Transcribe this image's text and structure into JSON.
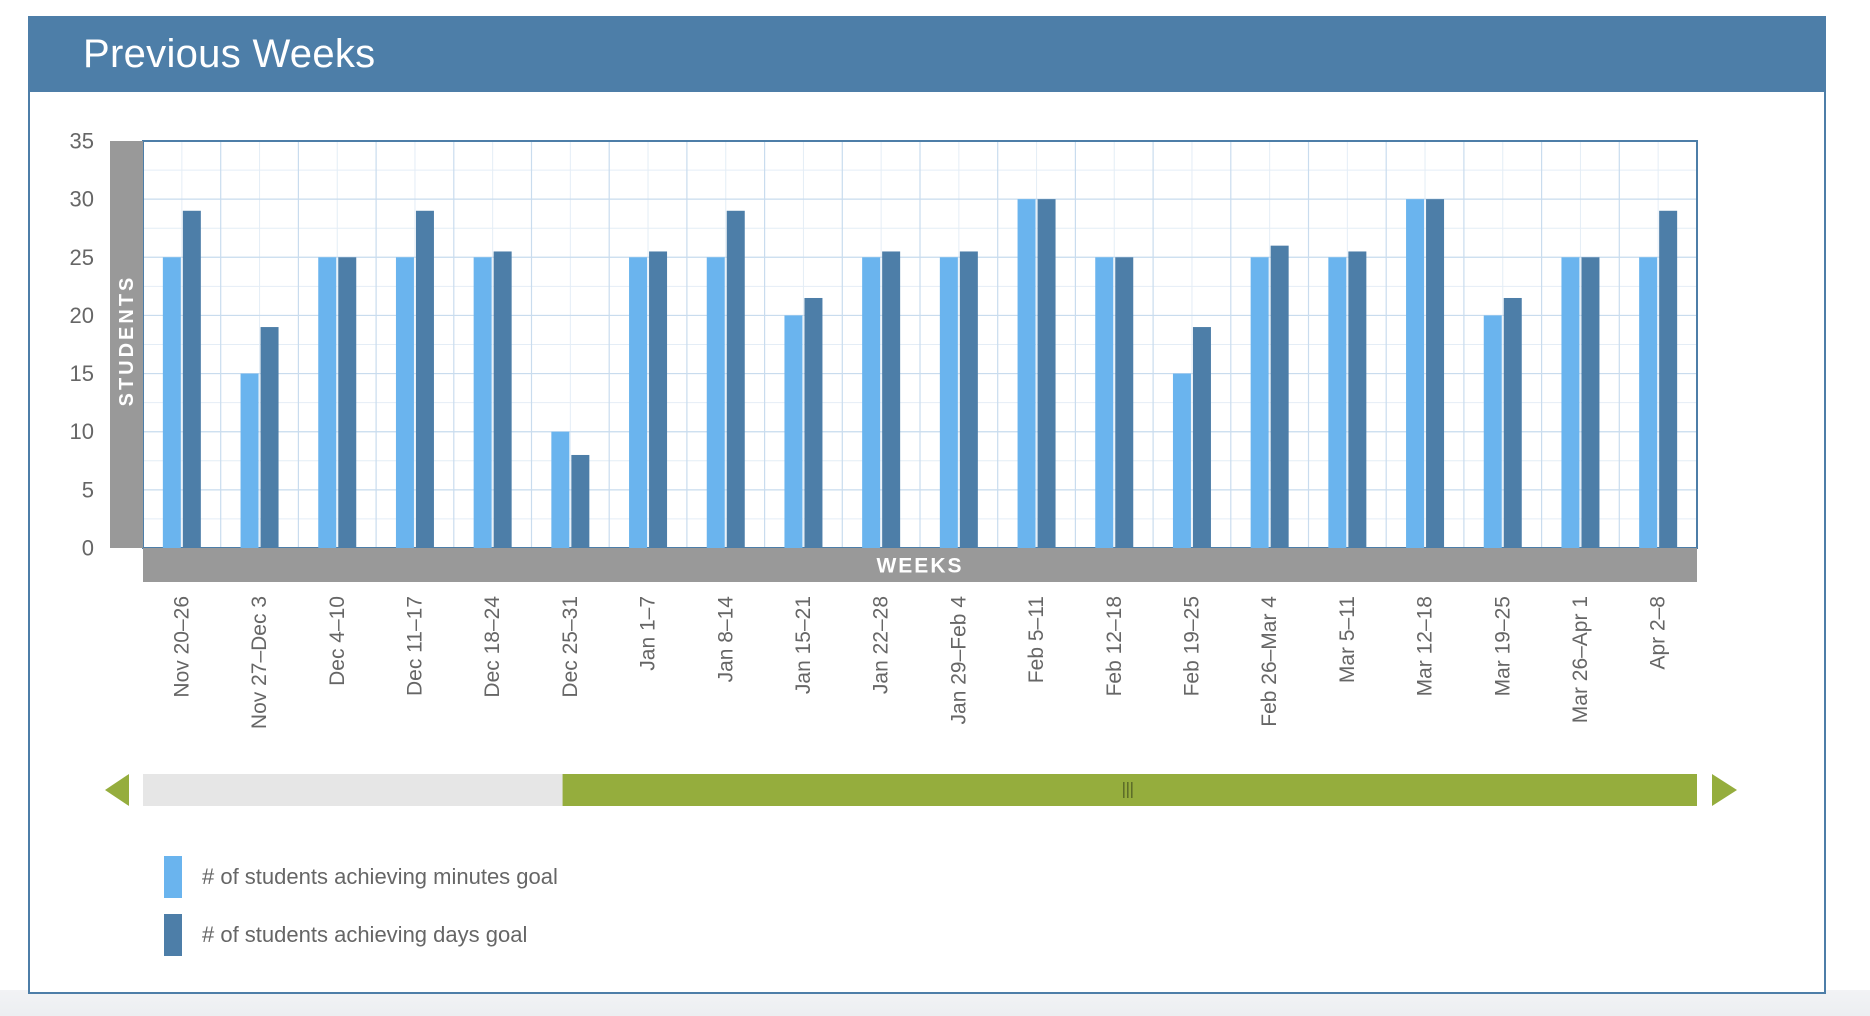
{
  "header": {
    "title": "Previous Weeks"
  },
  "colors": {
    "header_bg": "#4d7ea8",
    "minutes_bar": "#6ab4ee",
    "days_bar": "#4d7ea8",
    "axis_band": "#999999",
    "scroll_track": "#e6e6e6",
    "scroll_thumb": "#95ad3d",
    "arrow": "#95ad3d"
  },
  "chart_data": {
    "type": "bar",
    "xlabel": "WEEKS",
    "ylabel": "STUDENTS",
    "ylim": [
      0,
      35
    ],
    "yticks": [
      0,
      5,
      10,
      15,
      20,
      25,
      30,
      35
    ],
    "grid": true,
    "legend_position": "bottom-left",
    "categories": [
      "Nov 20–26",
      "Nov 27–Dec 3",
      "Dec 4–10",
      "Dec 11–17",
      "Dec 18–24",
      "Dec 25–31",
      "Jan 1–7",
      "Jan 8–14",
      "Jan 15–21",
      "Jan 22–28",
      "Jan 29–Feb 4",
      "Feb 5–11",
      "Feb 12–18",
      "Feb 19–25",
      "Feb 26–Mar 4",
      "Mar 5–11",
      "Mar 12–18",
      "Mar 19–25",
      "Mar 26–Apr 1",
      "Apr 2–8"
    ],
    "series": [
      {
        "name": "# of students achieving minutes goal",
        "color": "#6ab4ee",
        "values": [
          25,
          15,
          25,
          25,
          25,
          10,
          25,
          25,
          20,
          25,
          25,
          30,
          25,
          15,
          25,
          25,
          30,
          20,
          25,
          25
        ]
      },
      {
        "name": "# of students achieving days goal",
        "color": "#4d7ea8",
        "values": [
          29,
          19,
          25,
          29,
          25.5,
          8,
          25.5,
          29,
          21.5,
          25.5,
          25.5,
          30,
          25,
          19,
          26,
          25.5,
          30,
          21.5,
          25,
          29
        ]
      }
    ]
  },
  "scrollbar": {
    "visible_fraction": 0.73,
    "position": "end"
  }
}
